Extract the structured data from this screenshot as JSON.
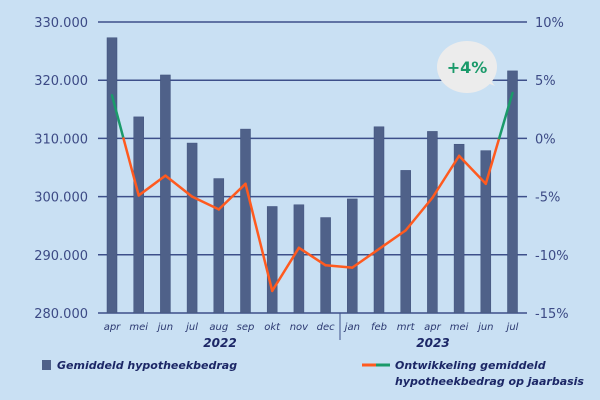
{
  "chart_data": {
    "type": "bar+line",
    "categories": [
      "apr",
      "mei",
      "jun",
      "jul",
      "aug",
      "sep",
      "okt",
      "nov",
      "dec",
      "jan",
      "feb",
      "mrt",
      "apr",
      "mei",
      "jun",
      "jul"
    ],
    "year_groups": [
      {
        "label": "2022",
        "months": 9
      },
      {
        "label": "2023",
        "months": 7
      }
    ],
    "series": [
      {
        "name": "Gemiddeld hypotheekbedrag",
        "type": "bar",
        "axis": "left",
        "color": "#4f6189",
        "values": [
          327300,
          313700,
          320900,
          309200,
          303100,
          311600,
          298300,
          298600,
          296400,
          299600,
          312000,
          304500,
          311200,
          309000,
          307900,
          321600
        ]
      },
      {
        "name": "Ontwikkeling gemiddeld hypotheekbedrag op jaarbasis",
        "type": "line",
        "axis": "right",
        "unit": "%",
        "color_negative": "#ff5a1f",
        "color_positive": "#1a9a6a",
        "values": [
          3.7,
          -4.9,
          -3.2,
          -5.0,
          -6.1,
          -3.9,
          -13.1,
          -9.4,
          -10.9,
          -11.1,
          -9.5,
          -7.9,
          -5.1,
          -1.5,
          -3.9,
          3.9
        ]
      }
    ],
    "left_axis": {
      "ylim": [
        280000,
        330000
      ],
      "ticks": [
        "280.000",
        "290.000",
        "300.000",
        "310.000",
        "320.000",
        "330.000"
      ]
    },
    "right_axis": {
      "ylim": [
        -15,
        10
      ],
      "ticks": [
        "-15%",
        "-10%",
        "-5%",
        "0%",
        "5%",
        "10%"
      ]
    },
    "grid": true,
    "annotation": "+4%",
    "legend": {
      "placement": "bottom",
      "bar_label": "Gemiddeld hypotheekbedrag",
      "line_label_1": "Ontwikkeling gemiddeld",
      "line_label_2": "hypotheekbedrag op jaarbasis"
    },
    "colors": {
      "background": "#c9e0f3",
      "grid": "#3d4f8a",
      "text": "#3c4a85"
    }
  }
}
